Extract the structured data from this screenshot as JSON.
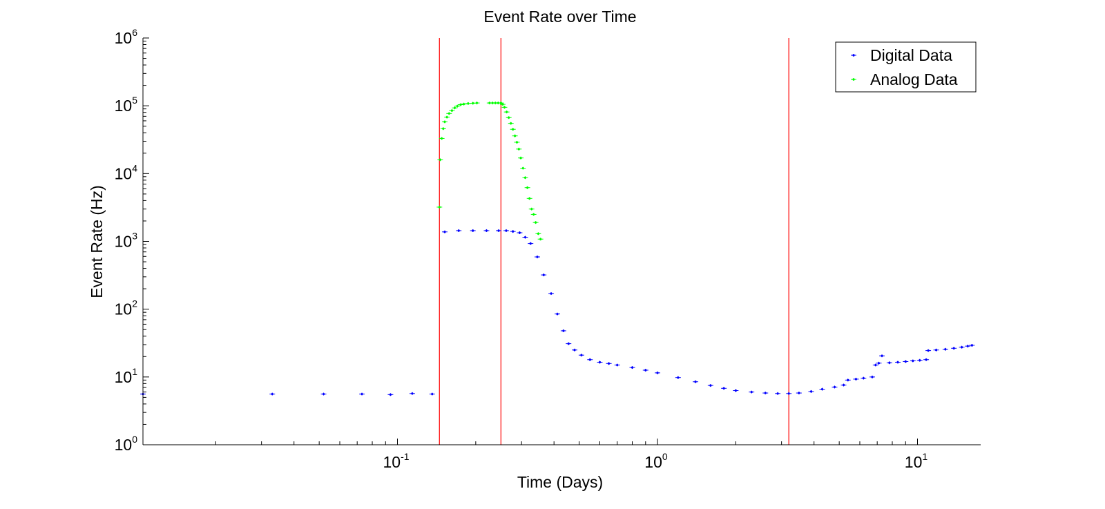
{
  "chart_data": {
    "type": "scatter",
    "title": "Event Rate over Time",
    "xlabel": "Time (Days)",
    "ylabel": "Event Rate (Hz)",
    "xscale": "log",
    "yscale": "log",
    "xlim": [
      0.0105,
      17.5
    ],
    "ylim": [
      1,
      1000000
    ],
    "grid": false,
    "legend_position": "top-right",
    "x_ticks": [
      {
        "base": "10",
        "exp": "-1",
        "value": 0.1
      },
      {
        "base": "10",
        "exp": "0",
        "value": 1
      },
      {
        "base": "10",
        "exp": "1",
        "value": 10
      }
    ],
    "y_ticks": [
      {
        "base": "10",
        "exp": "0",
        "value": 1
      },
      {
        "base": "10",
        "exp": "1",
        "value": 10
      },
      {
        "base": "10",
        "exp": "2",
        "value": 100
      },
      {
        "base": "10",
        "exp": "3",
        "value": 1000
      },
      {
        "base": "10",
        "exp": "4",
        "value": 10000
      },
      {
        "base": "10",
        "exp": "5",
        "value": 100000
      },
      {
        "base": "10",
        "exp": "6",
        "value": 1000000
      }
    ],
    "vertical_lines": [
      {
        "x": 0.145,
        "color": "#ff0000"
      },
      {
        "x": 0.25,
        "color": "#ff0000"
      },
      {
        "x": 3.2,
        "color": "#ff0000"
      }
    ],
    "series": [
      {
        "name": "Digital Data",
        "color": "#0000ff",
        "points": [
          [
            0.0105,
            5.6
          ],
          [
            0.033,
            5.6
          ],
          [
            0.052,
            5.6
          ],
          [
            0.073,
            5.6
          ],
          [
            0.094,
            5.5
          ],
          [
            0.114,
            5.7
          ],
          [
            0.136,
            5.6
          ],
          [
            0.152,
            1380
          ],
          [
            0.172,
            1440
          ],
          [
            0.195,
            1440
          ],
          [
            0.22,
            1440
          ],
          [
            0.245,
            1440
          ],
          [
            0.262,
            1440
          ],
          [
            0.278,
            1400
          ],
          [
            0.295,
            1340
          ],
          [
            0.31,
            1150
          ],
          [
            0.325,
            930
          ],
          [
            0.345,
            590
          ],
          [
            0.365,
            320
          ],
          [
            0.39,
            170
          ],
          [
            0.412,
            85
          ],
          [
            0.435,
            48
          ],
          [
            0.455,
            31
          ],
          [
            0.48,
            25
          ],
          [
            0.51,
            21
          ],
          [
            0.55,
            18
          ],
          [
            0.6,
            16.5
          ],
          [
            0.65,
            15.8
          ],
          [
            0.7,
            15
          ],
          [
            0.8,
            13.8
          ],
          [
            0.9,
            12.6
          ],
          [
            1.0,
            11.5
          ],
          [
            1.2,
            9.8
          ],
          [
            1.4,
            8.5
          ],
          [
            1.6,
            7.5
          ],
          [
            1.8,
            6.8
          ],
          [
            2.0,
            6.3
          ],
          [
            2.3,
            6.0
          ],
          [
            2.6,
            5.8
          ],
          [
            2.9,
            5.7
          ],
          [
            3.2,
            5.7
          ],
          [
            3.5,
            5.8
          ],
          [
            3.9,
            6.1
          ],
          [
            4.3,
            6.6
          ],
          [
            4.8,
            7.1
          ],
          [
            5.2,
            7.6
          ],
          [
            5.4,
            9.0
          ],
          [
            5.8,
            9.3
          ],
          [
            6.2,
            9.6
          ],
          [
            6.7,
            10.0
          ],
          [
            6.9,
            15
          ],
          [
            7.1,
            16
          ],
          [
            7.3,
            20.5
          ],
          [
            7.8,
            16.2
          ],
          [
            8.4,
            16.5
          ],
          [
            9.0,
            16.9
          ],
          [
            9.6,
            17.3
          ],
          [
            10.2,
            17.6
          ],
          [
            10.8,
            18.0
          ],
          [
            11.0,
            24.5
          ],
          [
            11.8,
            25.0
          ],
          [
            12.8,
            25.6
          ],
          [
            13.8,
            26.5
          ],
          [
            14.8,
            27.5
          ],
          [
            15.6,
            28.5
          ],
          [
            16.2,
            29.3
          ]
        ]
      },
      {
        "name": "Analog Data",
        "color": "#00ff00",
        "points": [
          [
            0.145,
            3200
          ],
          [
            0.146,
            16000
          ],
          [
            0.148,
            33000
          ],
          [
            0.15,
            46000
          ],
          [
            0.152,
            58000
          ],
          [
            0.155,
            68000
          ],
          [
            0.158,
            77000
          ],
          [
            0.162,
            85000
          ],
          [
            0.166,
            93000
          ],
          [
            0.17,
            99000
          ],
          [
            0.175,
            104000
          ],
          [
            0.18,
            106000
          ],
          [
            0.187,
            108000
          ],
          [
            0.195,
            109000
          ],
          [
            0.202,
            110000
          ],
          [
            0.226,
            110000
          ],
          [
            0.232,
            110000
          ],
          [
            0.238,
            110000
          ],
          [
            0.244,
            110000
          ],
          [
            0.25,
            110000
          ],
          [
            0.254,
            105000
          ],
          [
            0.258,
            95000
          ],
          [
            0.263,
            81000
          ],
          [
            0.268,
            67000
          ],
          [
            0.273,
            55000
          ],
          [
            0.278,
            45000
          ],
          [
            0.283,
            36000
          ],
          [
            0.288,
            29000
          ],
          [
            0.293,
            23000
          ],
          [
            0.298,
            17000
          ],
          [
            0.304,
            12000
          ],
          [
            0.31,
            8700
          ],
          [
            0.316,
            6200
          ],
          [
            0.322,
            4300
          ],
          [
            0.328,
            3000
          ],
          [
            0.334,
            2500
          ],
          [
            0.34,
            1900
          ],
          [
            0.348,
            1300
          ],
          [
            0.355,
            1080
          ]
        ]
      }
    ]
  }
}
